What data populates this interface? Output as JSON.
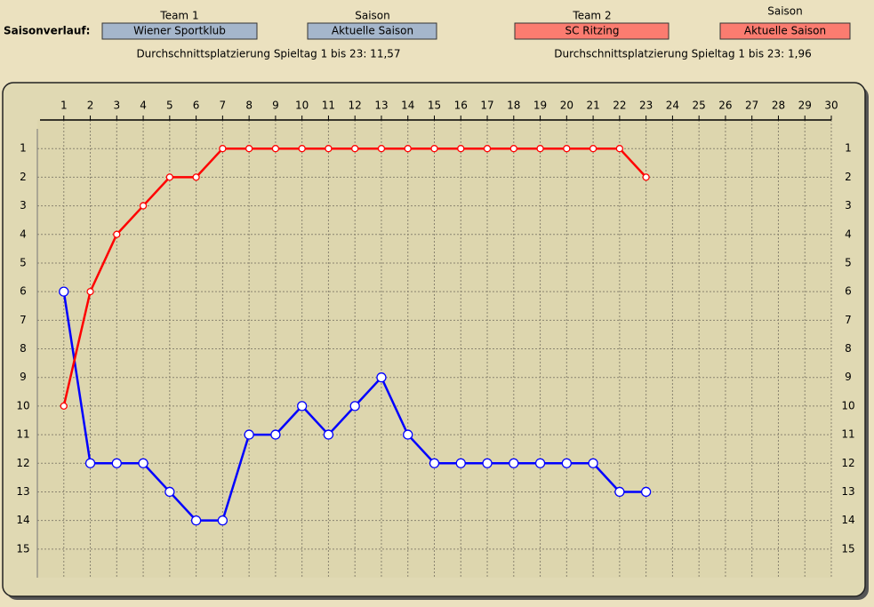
{
  "header": {
    "label": "Saisonverlauf:",
    "team1": {
      "caption": "Team 1",
      "value": "Wiener Sportklub"
    },
    "season1": {
      "caption": "Saison",
      "value": "Aktuelle Saison"
    },
    "team2": {
      "caption": "Team 2",
      "value": "SC Ritzing"
    },
    "season2": {
      "caption": "Saison",
      "value": "Aktuelle Saison"
    },
    "average1": "Durchschnittsplatzierung Spieltag 1 bis 23: 11,57",
    "average2": "Durchschnittsplatzierung Spieltag 1 bis 23:  1,96"
  },
  "chart_data": {
    "type": "line",
    "x": [
      1,
      2,
      3,
      4,
      5,
      6,
      7,
      8,
      9,
      10,
      11,
      12,
      13,
      14,
      15,
      16,
      17,
      18,
      19,
      20,
      21,
      22,
      23
    ],
    "series": [
      {
        "color": "#0000ff",
        "values": [
          6,
          12,
          12,
          12,
          13,
          14,
          14,
          11,
          11,
          10,
          11,
          10,
          9,
          11,
          12,
          12,
          12,
          12,
          12,
          12,
          12,
          13,
          13
        ]
      },
      {
        "color": "#ff0000",
        "values": [
          10,
          6,
          4,
          3,
          2,
          2,
          1,
          1,
          1,
          1,
          1,
          1,
          1,
          1,
          1,
          1,
          1,
          1,
          1,
          1,
          1,
          1,
          2
        ]
      }
    ],
    "xlim": [
      0,
      30
    ],
    "xticks": [
      1,
      2,
      3,
      4,
      5,
      6,
      7,
      8,
      9,
      10,
      11,
      12,
      13,
      14,
      15,
      16,
      17,
      18,
      19,
      20,
      21,
      22,
      23,
      24,
      25,
      26,
      27,
      28,
      29,
      30
    ],
    "ylim": [
      16,
      0
    ],
    "yticks": [
      1,
      2,
      3,
      4,
      5,
      6,
      7,
      8,
      9,
      10,
      11,
      12,
      13,
      14,
      15
    ],
    "grid": true
  }
}
